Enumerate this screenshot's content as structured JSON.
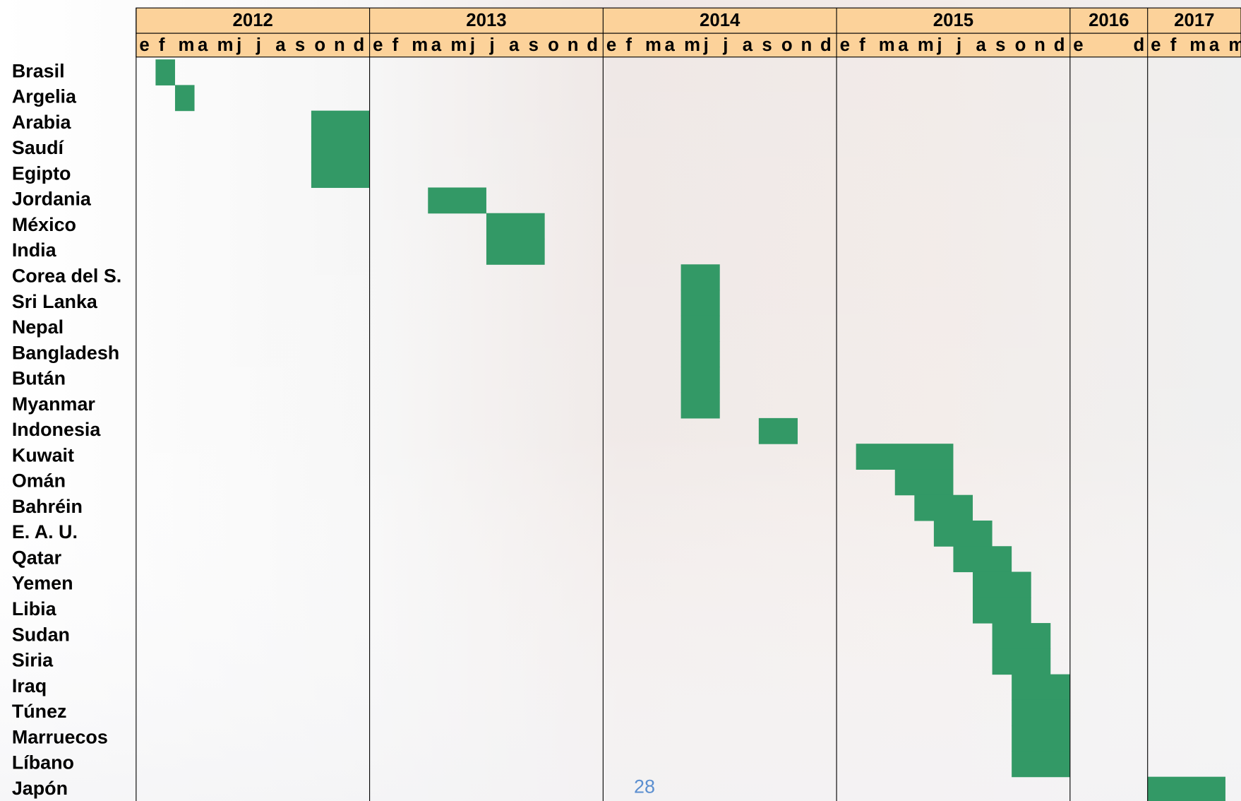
{
  "chart_data": {
    "type": "gantt",
    "years": [
      {
        "label": "2012",
        "months": [
          "e",
          "f",
          "m",
          "a",
          "m",
          "j",
          "j",
          "a",
          "s",
          "o",
          "n",
          "d"
        ]
      },
      {
        "label": "2013",
        "months": [
          "e",
          "f",
          "m",
          "a",
          "m",
          "j",
          "j",
          "a",
          "s",
          "o",
          "n",
          "d"
        ]
      },
      {
        "label": "2014",
        "months": [
          "e",
          "f",
          "m",
          "a",
          "m",
          "j",
          "j",
          "a",
          "s",
          "o",
          "n",
          "d"
        ]
      },
      {
        "label": "2015",
        "months": [
          "e",
          "f",
          "m",
          "a",
          "m",
          "j",
          "j",
          "a",
          "s",
          "o",
          "n",
          "d"
        ]
      },
      {
        "label": "2016",
        "months": [
          "e",
          "d"
        ]
      },
      {
        "label": "2017",
        "months": [
          "e",
          "f",
          "m",
          "a",
          "m"
        ]
      }
    ],
    "rows": [
      {
        "label": "Brasil",
        "start": "2012-02",
        "end": "2012-02"
      },
      {
        "label": "Argelia",
        "start": "2012-03",
        "end": "2012-03"
      },
      {
        "label": "Arabia",
        "start": "2012-10",
        "end": "2012-12"
      },
      {
        "label": "Saudí",
        "start": "2012-10",
        "end": "2012-12"
      },
      {
        "label": "Egipto",
        "start": "2012-10",
        "end": "2012-12"
      },
      {
        "label": "Jordania",
        "start": "2013-04",
        "end": "2013-06"
      },
      {
        "label": "México",
        "start": "2013-07",
        "end": "2013-09"
      },
      {
        "label": "India",
        "start": "2013-07",
        "end": "2013-09"
      },
      {
        "label": "Corea del S.",
        "start": "2014-05",
        "end": "2014-06"
      },
      {
        "label": "Sri Lanka",
        "start": "2014-05",
        "end": "2014-06"
      },
      {
        "label": "Nepal",
        "start": "2014-05",
        "end": "2014-06"
      },
      {
        "label": "Bangladesh",
        "start": "2014-05",
        "end": "2014-06"
      },
      {
        "label": "Bután",
        "start": "2014-05",
        "end": "2014-06"
      },
      {
        "label": "Myanmar",
        "start": "2014-05",
        "end": "2014-06"
      },
      {
        "label": "Indonesia",
        "start": "2014-09",
        "end": "2014-10"
      },
      {
        "label": "Kuwait",
        "start": "2015-02",
        "end": "2015-06"
      },
      {
        "label": "Omán",
        "start": "2015-04",
        "end": "2015-06"
      },
      {
        "label": "Bahréin",
        "start": "2015-05",
        "end": "2015-07"
      },
      {
        "label": "E. A. U.",
        "start": "2015-06",
        "end": "2015-08"
      },
      {
        "label": "Qatar",
        "start": "2015-07",
        "end": "2015-09"
      },
      {
        "label": "Yemen",
        "start": "2015-08",
        "end": "2015-10"
      },
      {
        "label": "Libia",
        "start": "2015-08",
        "end": "2015-10"
      },
      {
        "label": "Sudan",
        "start": "2015-09",
        "end": "2015-11"
      },
      {
        "label": "Siria",
        "start": "2015-09",
        "end": "2015-11"
      },
      {
        "label": "Iraq",
        "start": "2015-10",
        "end": "2015-12"
      },
      {
        "label": "Túnez",
        "start": "2015-10",
        "end": "2015-12"
      },
      {
        "label": "Marruecos",
        "start": "2015-10",
        "end": "2015-12"
      },
      {
        "label": "Líbano",
        "start": "2015-10",
        "end": "2015-12"
      },
      {
        "label": "Japón",
        "start": "2017-01",
        "end": "2017-04"
      }
    ],
    "color": "#339966",
    "page_number": "28"
  }
}
